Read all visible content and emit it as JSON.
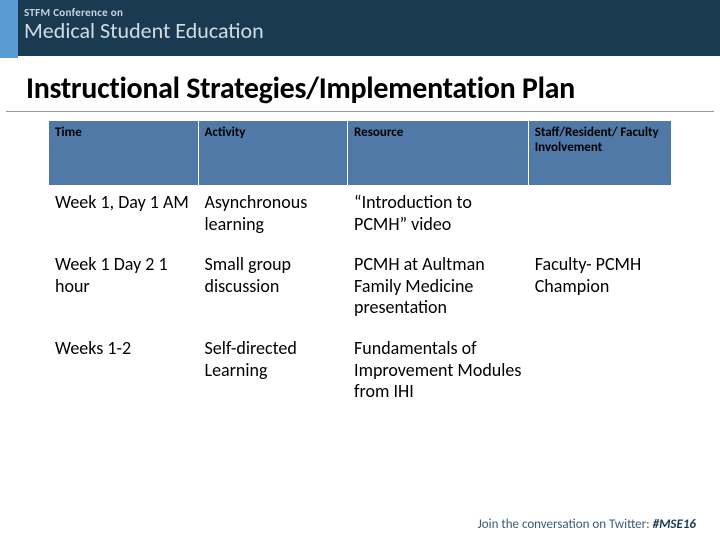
{
  "header": {
    "logo_top": "STFM Conference on",
    "logo_main": "Medical Student Education"
  },
  "title": "Instructional Strategies/Implementation Plan",
  "table": {
    "columns": [
      "Time",
      "Activity",
      "Resource",
      "Staff/Resident/ Faculty Involvement"
    ],
    "rows": [
      [
        "Week 1, Day 1 AM",
        "Asynchronous learning",
        "“Introduction to PCMH” video",
        ""
      ],
      [
        "Week 1 Day 2 1 hour",
        "Small group discussion",
        "PCMH at Aultman Family Medicine presentation",
        "Faculty- PCMH Champion"
      ],
      [
        "Weeks 1-2",
        "Self-directed Learning",
        "Fundamentals of Improvement Modules from IHI",
        ""
      ]
    ],
    "header_bg": "#5079a8",
    "header_fg": "#000000",
    "cell_bg": "#ffffff",
    "border_color": "#ffffff"
  },
  "footer": {
    "prefix": "Join the conversation on Twitter: ",
    "hashtag": "#MSE16"
  }
}
